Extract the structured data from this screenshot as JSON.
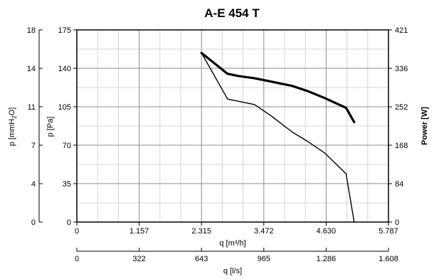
{
  "chart_data": {
    "type": "line",
    "title": "A-E 454 T",
    "xlabel": "q [m³/h]",
    "ylabel": "p [Pa]",
    "xlim": [
      0,
      5.787
    ],
    "ylim": [
      0,
      175
    ],
    "x_ticks": [
      "0",
      "1.157",
      "2.315",
      "3.472",
      "4.630",
      "5.787"
    ],
    "y_ticks": [
      "0",
      "35",
      "70",
      "105",
      "140",
      "175"
    ],
    "grid": true,
    "secondary_x_axis": {
      "label_base": "q [l/s]",
      "range": [
        0,
        1.608
      ],
      "ticks": [
        "0",
        "322",
        "643",
        "965",
        "1.286",
        "1.608"
      ]
    },
    "left_outer_axis": {
      "label_base": "p [mmH",
      "label_sub": "2",
      "label_end": "O]",
      "range": [
        0,
        17.84
      ],
      "ticks": [
        "0",
        "4",
        "7",
        "11",
        "14",
        "18"
      ]
    },
    "right_axis": {
      "label": "Power [W]",
      "range": [
        0,
        421
      ],
      "ticks": [
        "0",
        "84",
        "168",
        "252",
        "336",
        "421"
      ]
    },
    "series": [
      {
        "style": "thick",
        "x": [
          2.315,
          2.8,
          3.0,
          3.3,
          3.6,
          4.0,
          4.3,
          4.6,
          5.0,
          5.15
        ],
        "y": [
          154,
          135,
          133,
          131,
          128,
          124,
          119,
          113,
          104,
          91
        ]
      },
      {
        "style": "thin",
        "x": [
          2.315,
          2.8,
          3.0,
          3.3,
          3.6,
          4.0,
          4.3,
          4.6,
          5.0,
          5.15
        ],
        "y": [
          154,
          112,
          110,
          107,
          97,
          82,
          73,
          63,
          44,
          0
        ]
      }
    ]
  }
}
